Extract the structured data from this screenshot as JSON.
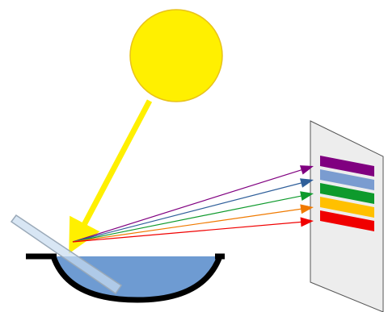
{
  "colors": {
    "sun_fill": "#FFF000",
    "sun_stroke": "#E8C21A",
    "sunbeam": "#FFF000",
    "water": "#6E9BD2",
    "basin": "#000000",
    "mirror": "#C9DDF0",
    "screen_fill": "#EDEDED",
    "screen_stroke": "#555555"
  },
  "spectrum": [
    {
      "color_name": "violet",
      "color": "#800080"
    },
    {
      "color_name": "blue",
      "color": "#2F5F9A",
      "band_color": "#7A9CD0"
    },
    {
      "color_name": "green",
      "color": "#0E9A2C"
    },
    {
      "color_name": "orange",
      "color": "#F07A00",
      "band_color": "#FFC000"
    },
    {
      "color_name": "red",
      "color": "#F00000"
    }
  ]
}
